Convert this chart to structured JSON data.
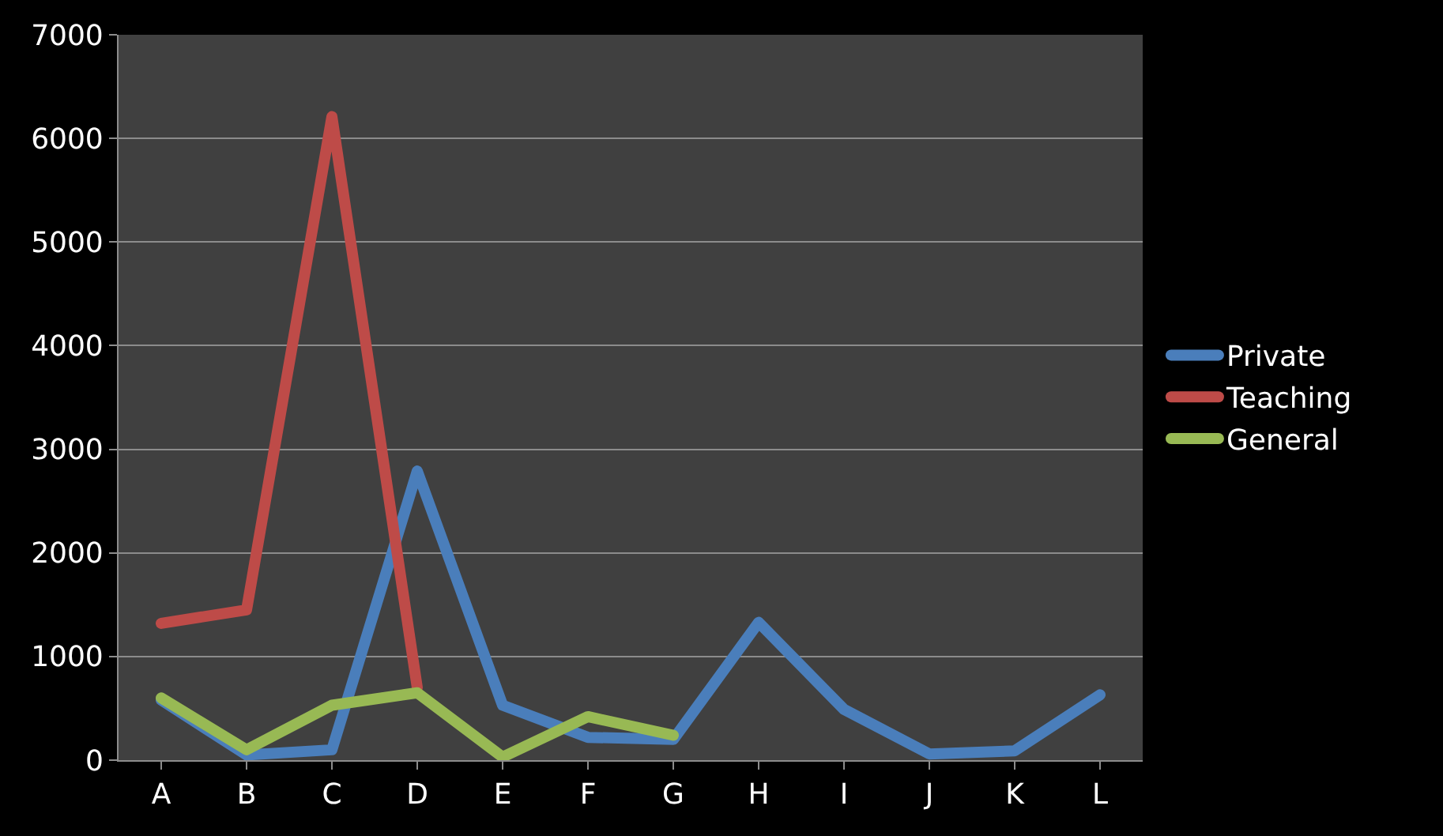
{
  "chart_data": {
    "type": "line",
    "categories": [
      "A",
      "B",
      "C",
      "D",
      "E",
      "F",
      "G",
      "H",
      "I",
      "J",
      "K",
      "L"
    ],
    "series": [
      {
        "name": "Private",
        "color": "#4a7ebb",
        "values": [
          580,
          50,
          100,
          2790,
          530,
          220,
          200,
          1330,
          490,
          60,
          90,
          630
        ]
      },
      {
        "name": "Teaching",
        "color": "#be4b48",
        "values": [
          1320,
          1450,
          6210,
          700,
          null,
          null,
          null,
          null,
          null,
          null,
          null,
          null
        ]
      },
      {
        "name": "General",
        "color": "#98b954",
        "values": [
          600,
          100,
          530,
          650,
          30,
          420,
          240,
          null,
          null,
          null,
          null,
          null
        ]
      }
    ],
    "ylim": [
      0,
      7000
    ],
    "yticks": [
      0,
      1000,
      2000,
      3000,
      4000,
      5000,
      6000,
      7000
    ],
    "grid": "y",
    "legend": "right",
    "marker": "none",
    "line_style": "solid"
  }
}
